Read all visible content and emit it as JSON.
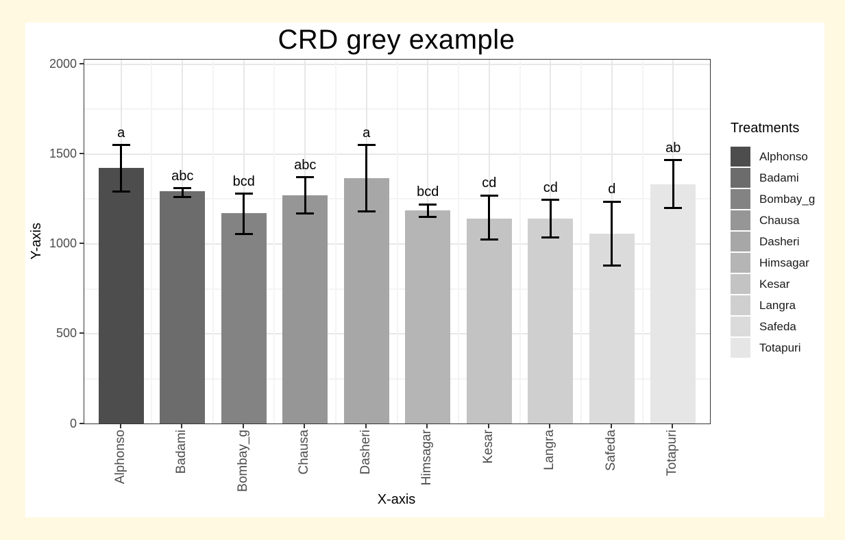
{
  "chart_data": {
    "type": "bar",
    "title": "CRD grey example",
    "xlabel": "X-axis",
    "ylabel": "Y-axis",
    "legend_title": "Treatments",
    "legend_position": "right",
    "grid": "major+minor",
    "categories": [
      "Alphonso",
      "Badami",
      "Bombay_g",
      "Chausa",
      "Dasheri",
      "Himsagar",
      "Kesar",
      "Langra",
      "Safeda",
      "Totapuri"
    ],
    "values": [
      1420,
      1290,
      1170,
      1270,
      1365,
      1185,
      1140,
      1140,
      1055,
      1330
    ],
    "error_upper": [
      1550,
      1310,
      1280,
      1370,
      1550,
      1220,
      1270,
      1245,
      1235,
      1465
    ],
    "error_lower": [
      1290,
      1260,
      1055,
      1170,
      1180,
      1150,
      1025,
      1035,
      880,
      1200
    ],
    "sig_letters": [
      "a",
      "abc",
      "bcd",
      "abc",
      "a",
      "bcd",
      "cd",
      "cd",
      "d",
      "ab"
    ],
    "bar_colors": [
      "#4D4D4D",
      "#6C6C6C",
      "#838383",
      "#969696",
      "#A7A7A7",
      "#B5B5B5",
      "#C3C3C3",
      "#CFCFCF",
      "#DBDBDB",
      "#E6E6E6"
    ],
    "ylim": [
      0,
      2025
    ],
    "yticks": [
      0,
      500,
      1000,
      1500,
      2000
    ],
    "yticks_minor": [
      250,
      750,
      1250,
      1750
    ],
    "colors": {
      "page_background": "#FFF9E2",
      "plot_background": "#FFFFFF",
      "grid_major": "#E7E7E7",
      "grid_minor": "#F4F4F4",
      "axis_text": "#4D4D4D",
      "panel_border": "#333333",
      "error_bar": "#000000"
    }
  }
}
